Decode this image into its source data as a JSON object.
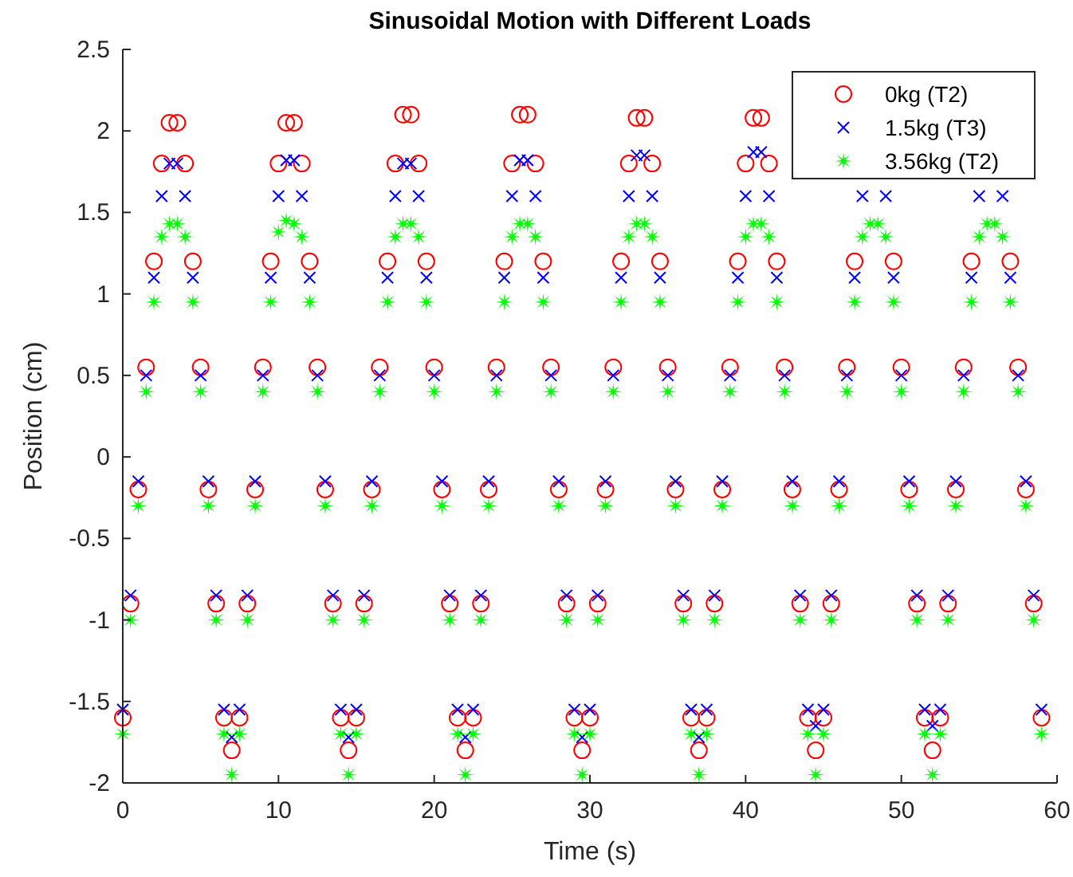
{
  "chart_data": {
    "type": "scatter",
    "title": "Sinusoidal Motion with Different Loads",
    "xlabel": "Time (s)",
    "ylabel": "Position (cm)",
    "xlim": [
      0,
      60
    ],
    "xticks": [
      0,
      10,
      20,
      30,
      40,
      50,
      60
    ],
    "ylim": [
      -2,
      2.5
    ],
    "yticks": [
      -2,
      -1.5,
      -1,
      -0.5,
      0,
      0.5,
      1,
      1.5,
      2,
      2.5
    ],
    "legend": "top right",
    "x": [
      0,
      0.5,
      1,
      1.5,
      2,
      2.5,
      3,
      3.5,
      4,
      4.5,
      5,
      5.5,
      6,
      6.5,
      7,
      7.5,
      8,
      8.5,
      9,
      9.5,
      10,
      10.5,
      11,
      11.5,
      12,
      12.5,
      13,
      13.5,
      14,
      14.5,
      15,
      15.5,
      16,
      16.5,
      17,
      17.5,
      18,
      18.5,
      19,
      19.5,
      20,
      20.5,
      21,
      21.5,
      22,
      22.5,
      23,
      23.5,
      24,
      24.5,
      25,
      25.5,
      26,
      26.5,
      27,
      27.5,
      28,
      28.5,
      29,
      29.5,
      30,
      30.5,
      31,
      31.5,
      32,
      32.5,
      33,
      33.5,
      34,
      34.5,
      35,
      35.5,
      36,
      36.5,
      37,
      37.5,
      38,
      38.5,
      39,
      39.5,
      40,
      40.5,
      41,
      41.5,
      42,
      42.5,
      43,
      43.5,
      44,
      44.5,
      45,
      45.5,
      46,
      46.5,
      47,
      47.5,
      48,
      48.5,
      49,
      49.5,
      50,
      50.5,
      51,
      51.5,
      52,
      52.5,
      53,
      53.5,
      54,
      54.5,
      55,
      55.5,
      56,
      56.5,
      57,
      57.5,
      58,
      58.5,
      59
    ],
    "series": [
      {
        "name": "0kg (T2)",
        "color": "#ff0000",
        "marker": "circle",
        "values": [
          -1.6,
          -0.9,
          -0.2,
          0.55,
          1.2,
          1.8,
          2.05,
          2.05,
          1.8,
          1.2,
          0.55,
          -0.2,
          -0.9,
          -1.6,
          -1.8,
          -1.6,
          -0.9,
          -0.2,
          0.55,
          1.2,
          1.8,
          2.05,
          2.05,
          1.8,
          1.2,
          0.55,
          -0.2,
          -0.9,
          -1.6,
          -1.8,
          -1.6,
          -0.9,
          -0.2,
          0.55,
          1.2,
          1.8,
          2.1,
          2.1,
          1.8,
          1.2,
          0.55,
          -0.2,
          -0.9,
          -1.6,
          -1.8,
          -1.6,
          -0.9,
          -0.2,
          0.55,
          1.2,
          1.8,
          2.1,
          2.1,
          1.8,
          1.2,
          0.55,
          -0.2,
          -0.9,
          -1.6,
          -1.8,
          -1.6,
          -0.9,
          -0.2,
          0.55,
          1.2,
          1.8,
          2.08,
          2.08,
          1.8,
          1.2,
          0.55,
          -0.2,
          -0.9,
          -1.6,
          -1.8,
          -1.6,
          -0.9,
          -0.2,
          0.55,
          1.2,
          1.8,
          2.08,
          2.08,
          1.8,
          1.2,
          0.55,
          -0.2,
          -0.9,
          -1.6,
          -1.8,
          -1.6,
          -0.9,
          -0.2,
          0.55,
          1.2,
          null,
          null,
          null,
          null,
          1.2,
          0.55,
          -0.2,
          -0.9,
          -1.6,
          -1.8,
          -1.6,
          -0.9,
          -0.2,
          0.55,
          1.2,
          null,
          null,
          null,
          null,
          1.2,
          0.55,
          -0.2,
          -0.9,
          -1.6
        ]
      },
      {
        "name": "1.5kg (T3)",
        "color": "#0000ff",
        "marker": "cross",
        "values": [
          -1.55,
          -0.85,
          -0.15,
          0.5,
          1.1,
          1.6,
          1.8,
          1.8,
          1.6,
          1.1,
          0.5,
          -0.15,
          -0.85,
          -1.55,
          -1.72,
          -1.55,
          -0.85,
          -0.15,
          0.5,
          1.1,
          1.6,
          1.82,
          1.82,
          1.6,
          1.1,
          0.5,
          -0.15,
          -0.85,
          -1.55,
          -1.72,
          -1.55,
          -0.85,
          -0.15,
          0.5,
          1.1,
          1.6,
          1.8,
          1.8,
          1.6,
          1.1,
          0.5,
          -0.15,
          -0.85,
          -1.55,
          -1.72,
          -1.55,
          -0.85,
          -0.15,
          0.5,
          1.1,
          1.6,
          1.82,
          1.82,
          1.6,
          1.1,
          0.5,
          -0.15,
          -0.85,
          -1.55,
          -1.72,
          -1.55,
          -0.85,
          -0.15,
          0.5,
          1.1,
          1.6,
          1.85,
          1.85,
          1.6,
          1.1,
          0.5,
          -0.15,
          -0.85,
          -1.55,
          -1.72,
          -1.55,
          -0.85,
          -0.15,
          0.5,
          1.1,
          1.6,
          1.87,
          1.87,
          1.6,
          1.1,
          0.5,
          -0.15,
          -0.85,
          -1.55,
          -1.65,
          -1.55,
          -0.85,
          -0.15,
          0.5,
          1.1,
          1.6,
          null,
          null,
          1.6,
          1.1,
          0.5,
          -0.15,
          -0.85,
          -1.55,
          -1.65,
          -1.55,
          -0.85,
          -0.15,
          0.5,
          1.1,
          1.6,
          null,
          null,
          1.6,
          1.1,
          0.5,
          -0.15,
          -0.85,
          -1.55
        ]
      },
      {
        "name": "3.56kg (T2)",
        "color": "#00ff00",
        "marker": "star",
        "values": [
          -1.7,
          -1.0,
          -0.3,
          0.4,
          0.95,
          1.35,
          1.43,
          1.43,
          1.35,
          0.95,
          0.4,
          -0.3,
          -1.0,
          -1.7,
          -1.95,
          -1.7,
          -1.0,
          -0.3,
          0.4,
          0.95,
          1.38,
          1.45,
          1.43,
          1.35,
          0.95,
          0.4,
          -0.3,
          -1.0,
          -1.7,
          -1.95,
          -1.7,
          -1.0,
          -0.3,
          0.4,
          0.95,
          1.35,
          1.43,
          1.43,
          1.35,
          0.95,
          0.4,
          -0.3,
          -1.0,
          -1.7,
          -1.95,
          -1.7,
          -1.0,
          -0.3,
          0.4,
          0.95,
          1.35,
          1.43,
          1.43,
          1.35,
          0.95,
          0.4,
          -0.3,
          -1.0,
          -1.7,
          -1.95,
          -1.7,
          -1.0,
          -0.3,
          0.4,
          0.95,
          1.35,
          1.43,
          1.43,
          1.35,
          0.95,
          0.4,
          -0.3,
          -1.0,
          -1.7,
          -1.95,
          -1.7,
          -1.0,
          -0.3,
          0.4,
          0.95,
          1.35,
          1.43,
          1.43,
          1.35,
          0.95,
          0.4,
          -0.3,
          -1.0,
          -1.7,
          -1.95,
          -1.7,
          -1.0,
          -0.3,
          0.4,
          0.95,
          1.35,
          1.43,
          1.43,
          1.35,
          0.95,
          0.4,
          -0.3,
          -1.0,
          -1.7,
          -1.95,
          -1.7,
          -1.0,
          -0.3,
          0.4,
          0.95,
          1.35,
          1.43,
          1.43,
          1.35,
          0.95,
          0.4,
          -0.3,
          -1.0,
          -1.7
        ]
      }
    ]
  }
}
